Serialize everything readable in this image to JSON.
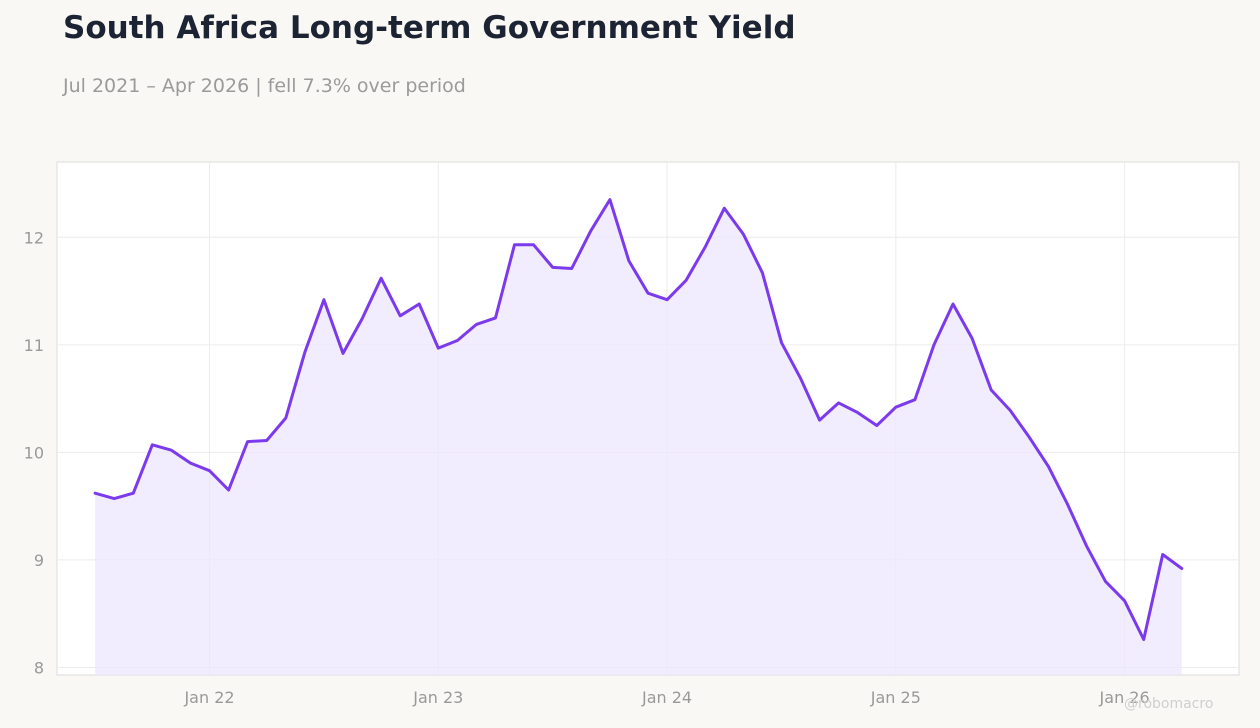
{
  "header": {
    "title": "South Africa Long-term Government Yield",
    "subtitle": "Jul 2021 – Apr 2026 | fell 7.3% over period"
  },
  "watermark": "@robomacro",
  "colors": {
    "line": "#7c3aed",
    "fill": "#ede7fd",
    "background": "#f9f8f5",
    "plot_background": "#ffffff",
    "grid": "#ececec"
  },
  "chart_data": {
    "type": "area",
    "title": "South Africa Long-term Government Yield",
    "subtitle": "Jul 2021 – Apr 2026 | fell 7.3% over period",
    "xlabel": "",
    "ylabel": "",
    "grid": true,
    "x_range": [
      "2021-05",
      "2026-07"
    ],
    "ylim": [
      7.93,
      12.7
    ],
    "x_ticks": [
      {
        "date": "2022-01",
        "label": "Jan 22"
      },
      {
        "date": "2023-01",
        "label": "Jan 23"
      },
      {
        "date": "2024-01",
        "label": "Jan 24"
      },
      {
        "date": "2025-01",
        "label": "Jan 25"
      },
      {
        "date": "2026-01",
        "label": "Jan 26"
      }
    ],
    "y_ticks": [
      8,
      9,
      10,
      11,
      12
    ],
    "series": [
      {
        "x": [
          "2021-07",
          "2021-08",
          "2021-09",
          "2021-10",
          "2021-11",
          "2021-12",
          "2022-01",
          "2022-02",
          "2022-03",
          "2022-04",
          "2022-05",
          "2022-06",
          "2022-07",
          "2022-08",
          "2022-09",
          "2022-10",
          "2022-11",
          "2022-12",
          "2023-01",
          "2023-02",
          "2023-03",
          "2023-04",
          "2023-05",
          "2023-06",
          "2023-07",
          "2023-08",
          "2023-09",
          "2023-10",
          "2023-11",
          "2023-12",
          "2024-01",
          "2024-02",
          "2024-03",
          "2024-04",
          "2024-05",
          "2024-06",
          "2024-07",
          "2024-08",
          "2024-09",
          "2024-10",
          "2024-11",
          "2024-12",
          "2025-01",
          "2025-02",
          "2025-03",
          "2025-04",
          "2025-05",
          "2025-06",
          "2025-07",
          "2025-08",
          "2025-09",
          "2025-10",
          "2025-11",
          "2025-12",
          "2026-01",
          "2026-02",
          "2026-03",
          "2026-04"
        ],
        "values": [
          9.62,
          9.57,
          9.62,
          10.07,
          10.02,
          9.9,
          9.83,
          9.65,
          10.1,
          10.11,
          10.32,
          10.93,
          11.42,
          10.92,
          11.24,
          11.62,
          11.27,
          11.38,
          10.97,
          11.04,
          11.19,
          11.25,
          11.93,
          11.93,
          11.72,
          11.71,
          12.06,
          12.35,
          11.78,
          11.48,
          11.42,
          11.6,
          11.91,
          12.27,
          12.03,
          11.67,
          11.02,
          10.69,
          10.3,
          10.46,
          10.37,
          10.25,
          10.42,
          10.49,
          11.0,
          11.38,
          11.06,
          10.58,
          10.39,
          10.14,
          9.87,
          9.52,
          9.13,
          8.8,
          8.62,
          8.26,
          9.05,
          8.92
        ]
      }
    ]
  }
}
